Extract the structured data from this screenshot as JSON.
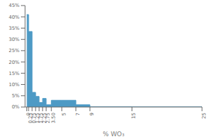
{
  "chart_data": {
    "type": "histogram",
    "xlabel": "% WO₃",
    "bins": [
      0,
      0.25,
      0.75,
      1.25,
      1.75,
      2.25,
      2.75,
      3.5,
      5,
      7,
      9,
      15,
      25
    ],
    "values": [
      41,
      33.5,
      6.5,
      4.7,
      2.0,
      3.8,
      1.0,
      3.0,
      3.0,
      1.0,
      0.1,
      0.05
    ],
    "color": "#4d9ac5",
    "xlim": [
      -0.25,
      25
    ],
    "ylim": [
      0,
      45
    ],
    "xticks": [
      0,
      0.25,
      0.75,
      1.25,
      1.75,
      2.25,
      2.75,
      {
        "value": 3.5,
        "label": "3.50"
      },
      5,
      7,
      9,
      15,
      25
    ],
    "yticks": [
      {
        "value": 0,
        "label": "0%"
      },
      {
        "value": 5,
        "label": "5%"
      },
      {
        "value": 10,
        "label": "10%"
      },
      {
        "value": 15,
        "label": "15%"
      },
      {
        "value": 20,
        "label": "20%"
      },
      {
        "value": 25,
        "label": "25%"
      },
      {
        "value": 30,
        "label": "30%"
      },
      {
        "value": 35,
        "label": "35%"
      },
      {
        "value": 40,
        "label": "40%"
      },
      {
        "value": 45,
        "label": "45%"
      }
    ]
  }
}
